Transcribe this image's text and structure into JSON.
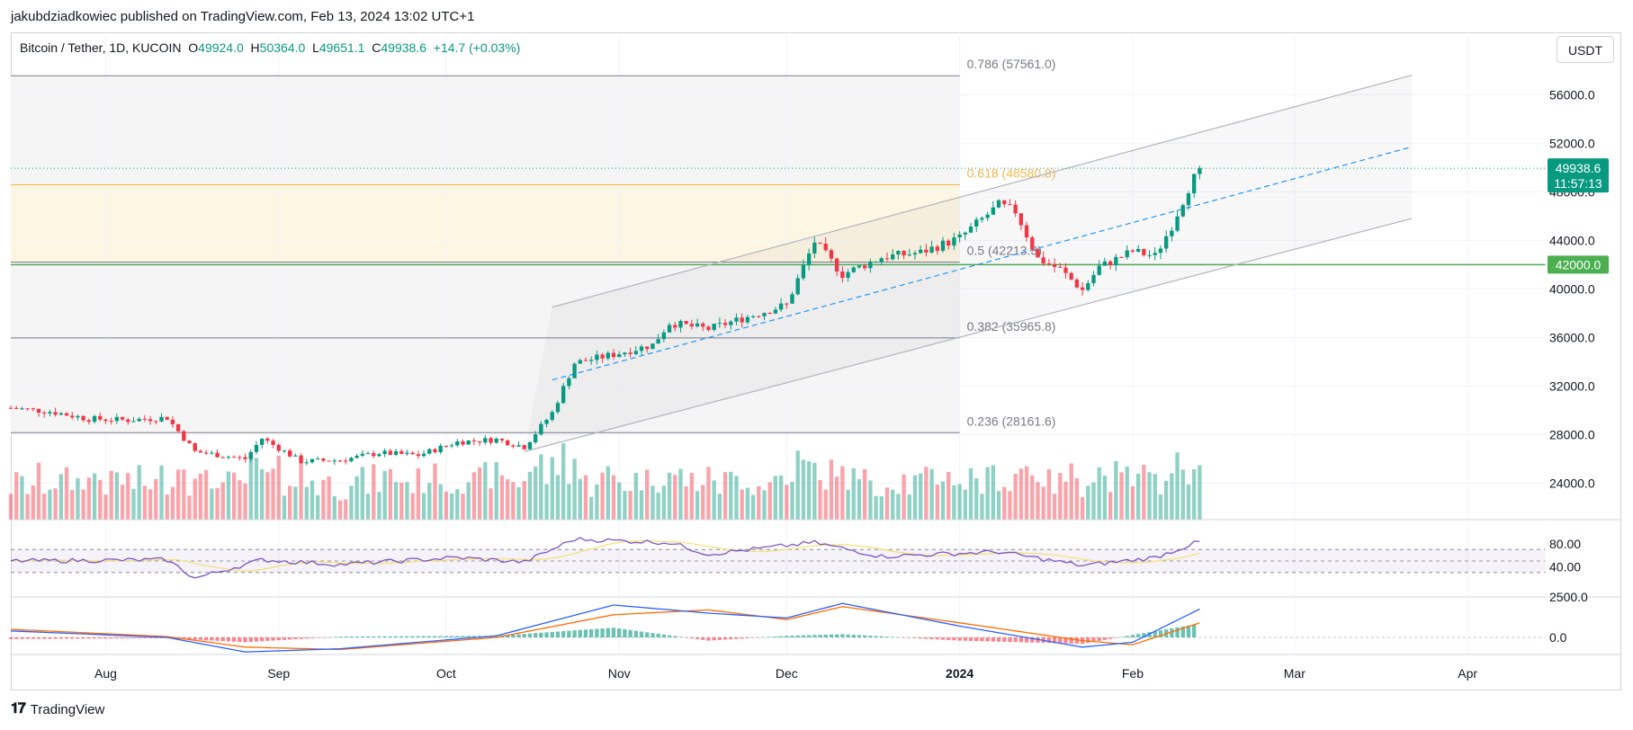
{
  "header": {
    "credit": "jakubdziadkowiec published on TradingView.com, Feb 13, 2024 13:02 UTC+1"
  },
  "legend": {
    "symbol": "Bitcoin / Tether, 1D, KUCOIN",
    "o_label": "O",
    "o_value": "49924.0",
    "h_label": "H",
    "h_value": "50364.0",
    "l_label": "L",
    "l_value": "49651.1",
    "c_label": "C",
    "c_value": "49938.6",
    "change": "+14.7 (+0.03%)"
  },
  "toolbar": {
    "currency_button": "USDT"
  },
  "footer": {
    "brand": "TradingView"
  },
  "colors": {
    "up": "#089981",
    "down": "#f23645",
    "accent": "#2962ff",
    "rsi": "#7e57c2",
    "rsi_ma": "#f7e07a",
    "macd": "#2962ff",
    "signal": "#ff6d00",
    "support": "#4caf50",
    "fib_golden": "#f2b84b"
  },
  "chart_data": [
    {
      "type": "candlestick",
      "instrument": "Bitcoin / Tether, 1D, KUCOIN",
      "x_range": [
        "2023-07-15",
        "2024-04-15"
      ],
      "y_range": [
        21000,
        59500
      ],
      "y_ticks": [
        "56000.0",
        "52000.0",
        "48000.0",
        "44000.0",
        "40000.0",
        "36000.0",
        "32000.0",
        "28000.0",
        "24000.0"
      ],
      "x_ticks": [
        {
          "date": "2023-08-01",
          "label": "Aug"
        },
        {
          "date": "2023-09-01",
          "label": "Sep"
        },
        {
          "date": "2023-10-01",
          "label": "Oct"
        },
        {
          "date": "2023-11-01",
          "label": "Nov"
        },
        {
          "date": "2023-12-01",
          "label": "Dec"
        },
        {
          "date": "2024-01-01",
          "label": "2024"
        },
        {
          "date": "2024-02-01",
          "label": "Feb"
        },
        {
          "date": "2024-03-01",
          "label": "Mar"
        },
        {
          "date": "2024-04-01",
          "label": "Apr"
        }
      ],
      "weekly_close": [
        {
          "date": "2023-07-15",
          "close": 30200
        },
        {
          "date": "2023-07-22",
          "close": 29900
        },
        {
          "date": "2023-07-29",
          "close": 29300
        },
        {
          "date": "2023-08-05",
          "close": 29200
        },
        {
          "date": "2023-08-12",
          "close": 29400
        },
        {
          "date": "2023-08-17",
          "close": 26600
        },
        {
          "date": "2023-08-26",
          "close": 26000
        },
        {
          "date": "2023-08-29",
          "close": 27700
        },
        {
          "date": "2023-09-05",
          "close": 25800
        },
        {
          "date": "2023-09-12",
          "close": 25900
        },
        {
          "date": "2023-09-19",
          "close": 26500
        },
        {
          "date": "2023-09-26",
          "close": 26300
        },
        {
          "date": "2023-10-03",
          "close": 27400
        },
        {
          "date": "2023-10-10",
          "close": 27600
        },
        {
          "date": "2023-10-15",
          "close": 27000
        },
        {
          "date": "2023-10-20",
          "close": 29800
        },
        {
          "date": "2023-10-24",
          "close": 33900
        },
        {
          "date": "2023-10-31",
          "close": 34600
        },
        {
          "date": "2023-11-07",
          "close": 35400
        },
        {
          "date": "2023-11-10",
          "close": 37200
        },
        {
          "date": "2023-11-17",
          "close": 36700
        },
        {
          "date": "2023-11-24",
          "close": 37700
        },
        {
          "date": "2023-12-01",
          "close": 38700
        },
        {
          "date": "2023-12-06",
          "close": 43900
        },
        {
          "date": "2023-12-11",
          "close": 41200
        },
        {
          "date": "2023-12-18",
          "close": 42600
        },
        {
          "date": "2023-12-25",
          "close": 43000
        },
        {
          "date": "2024-01-01",
          "close": 44200
        },
        {
          "date": "2024-01-08",
          "close": 46900
        },
        {
          "date": "2024-01-11",
          "close": 46400
        },
        {
          "date": "2024-01-15",
          "close": 42500
        },
        {
          "date": "2024-01-19",
          "close": 41600
        },
        {
          "date": "2024-01-23",
          "close": 39900
        },
        {
          "date": "2024-01-26",
          "close": 41800
        },
        {
          "date": "2024-02-01",
          "close": 43100
        },
        {
          "date": "2024-02-05",
          "close": 42700
        },
        {
          "date": "2024-02-08",
          "close": 45200
        },
        {
          "date": "2024-02-11",
          "close": 48300
        },
        {
          "date": "2024-02-13",
          "close": 49938.6
        }
      ],
      "last_price": {
        "label": "49938.6",
        "countdown": "11:57:13",
        "value": 49938.6
      },
      "support_line": {
        "value": 42000,
        "label": "42000.0"
      },
      "fibonacci": [
        {
          "ratio": "0.236",
          "price": "28161.6",
          "text": "0.236 (28161.6)",
          "value": 28161.6
        },
        {
          "ratio": "0.382",
          "price": "35965.8",
          "text": "0.382 (35965.8)",
          "value": 35965.8
        },
        {
          "ratio": "0.5",
          "price": "42213.3",
          "text": "0.5 (42213.3)",
          "value": 42213.3
        },
        {
          "ratio": "0.618",
          "price": "48580.8",
          "text": "0.618 (48580.8)",
          "value": 48580.8
        },
        {
          "ratio": "0.786",
          "price": "57561.0",
          "text": "0.786 (57561.0)",
          "value": 57561.0
        }
      ],
      "channel": {
        "upper": [
          {
            "date": "2023-10-20",
            "price": 38500
          },
          {
            "date": "2024-03-22",
            "price": 57600
          }
        ],
        "middle": [
          {
            "date": "2023-10-20",
            "price": 32500
          },
          {
            "date": "2024-03-22",
            "price": 51700
          }
        ],
        "lower": [
          {
            "date": "2023-10-15",
            "price": 26600
          },
          {
            "date": "2024-03-22",
            "price": 45800
          }
        ]
      },
      "volume": "bars colored by candle direction at base of price pane"
    },
    {
      "type": "line",
      "name": "RSI",
      "y_ticks": [
        "80.00",
        "40.00"
      ],
      "bands": [
        30,
        70
      ],
      "weekly_rsi": [
        {
          "date": "2023-07-15",
          "value": 50
        },
        {
          "date": "2023-08-12",
          "value": 52
        },
        {
          "date": "2023-08-17",
          "value": 20
        },
        {
          "date": "2023-08-29",
          "value": 52
        },
        {
          "date": "2023-09-12",
          "value": 44
        },
        {
          "date": "2023-10-03",
          "value": 56
        },
        {
          "date": "2023-10-15",
          "value": 48
        },
        {
          "date": "2023-10-24",
          "value": 88
        },
        {
          "date": "2023-11-10",
          "value": 82
        },
        {
          "date": "2023-11-17",
          "value": 62
        },
        {
          "date": "2023-12-06",
          "value": 82
        },
        {
          "date": "2023-12-18",
          "value": 58
        },
        {
          "date": "2024-01-08",
          "value": 66
        },
        {
          "date": "2024-01-23",
          "value": 42
        },
        {
          "date": "2024-02-05",
          "value": 56
        },
        {
          "date": "2024-02-13",
          "value": 84
        }
      ]
    },
    {
      "type": "line",
      "name": "MACD",
      "y_ticks": [
        "2500.0",
        "0.0"
      ],
      "weekly_macd": [
        {
          "date": "2023-07-15",
          "macd": 400,
          "signal": 500
        },
        {
          "date": "2023-08-12",
          "macd": 0,
          "signal": 50
        },
        {
          "date": "2023-08-26",
          "macd": -900,
          "signal": -600
        },
        {
          "date": "2023-09-12",
          "macd": -700,
          "signal": -750
        },
        {
          "date": "2023-10-10",
          "macd": 100,
          "signal": 0
        },
        {
          "date": "2023-10-31",
          "macd": 2000,
          "signal": 1400
        },
        {
          "date": "2023-11-17",
          "macd": 1500,
          "signal": 1700
        },
        {
          "date": "2023-12-01",
          "macd": 1200,
          "signal": 1100
        },
        {
          "date": "2023-12-11",
          "macd": 2100,
          "signal": 1900
        },
        {
          "date": "2024-01-01",
          "macd": 700,
          "signal": 900
        },
        {
          "date": "2024-01-23",
          "macd": -600,
          "signal": -200
        },
        {
          "date": "2024-02-01",
          "macd": -300,
          "signal": -450
        },
        {
          "date": "2024-02-13",
          "macd": 1750,
          "signal": 900
        }
      ]
    }
  ]
}
